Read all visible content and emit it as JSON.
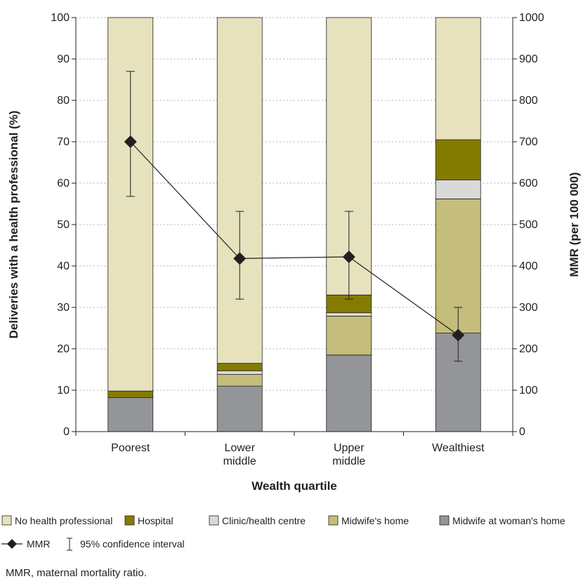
{
  "chart_data": {
    "type": "bar",
    "stacked": true,
    "categories": [
      "Poorest",
      "Lower\nmiddle",
      "Upper\nmiddle",
      "Wealthiest"
    ],
    "xlabel": "Wealth quartile",
    "ylabel": "Deliveries with a health professional (%)",
    "y2label": "MMR (per 100 000)",
    "ylim": [
      0,
      100
    ],
    "y2lim": [
      0,
      1000
    ],
    "yticks": [
      0,
      10,
      20,
      30,
      40,
      50,
      60,
      70,
      80,
      90,
      100
    ],
    "y2ticks": [
      0,
      100,
      200,
      300,
      400,
      500,
      600,
      700,
      800,
      900,
      1000
    ],
    "grid": "horizontal dotted",
    "series": [
      {
        "name": "Midwife at woman's home",
        "color": "#939598",
        "values": [
          8.2,
          11,
          18.5,
          23.8
        ]
      },
      {
        "name": "Midwife's home",
        "color": "#c4bd7c",
        "values": [
          0,
          2.8,
          9.4,
          32.4
        ]
      },
      {
        "name": "Clinic/health centre",
        "color": "#d9d9d9",
        "values": [
          0,
          0.9,
          0.8,
          4.6
        ]
      },
      {
        "name": "Hospital",
        "color": "#847c00",
        "values": [
          1.6,
          1.8,
          4.3,
          9.7
        ]
      },
      {
        "name": "No health professional",
        "color": "#e6e2bd",
        "values": [
          90.2,
          83.5,
          67,
          29.5
        ]
      }
    ],
    "line": {
      "name": "MMR",
      "axis": "right",
      "values": [
        700,
        418,
        422,
        233
      ],
      "ci_low": [
        568,
        320,
        320,
        170
      ],
      "ci_high": [
        870,
        532,
        532,
        300
      ]
    },
    "legend": {
      "placement": "bottom",
      "row1": [
        "No health professional",
        "Hospital",
        "Clinic/health centre",
        "Midwife's home",
        "Midwife at woman's home"
      ],
      "mmr_label": "MMR",
      "ci_label": "95% confidence interval"
    }
  },
  "footnote": "MMR, maternal mortality ratio."
}
